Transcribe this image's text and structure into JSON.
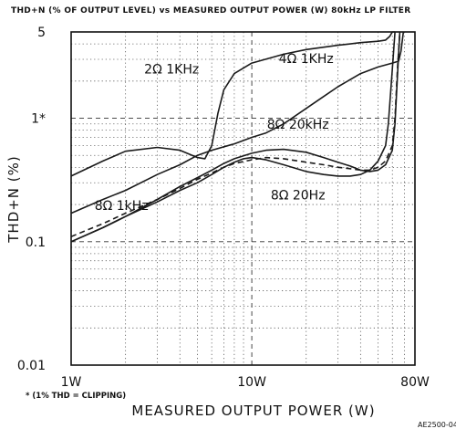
{
  "chart_data": {
    "type": "line",
    "title": "THD+N (% OF OUTPUT LEVEL) vs MEASURED OUTPUT POWER (W) 80kHz LP FILTER",
    "xlabel": "MEASURED OUTPUT POWER (W)",
    "ylabel": "THD+N (%)",
    "x_scale": "log",
    "y_scale": "log",
    "xlim": [
      1,
      80
    ],
    "ylim": [
      0.01,
      5
    ],
    "x_ticks": [
      {
        "value": 1,
        "label": "1W"
      },
      {
        "value": 10,
        "label": "10W"
      },
      {
        "value": 80,
        "label": "80W"
      }
    ],
    "y_ticks": [
      {
        "value": 5,
        "label": "5"
      },
      {
        "value": 1,
        "label": "1*"
      },
      {
        "value": 0.1,
        "label": "0.1"
      },
      {
        "value": 0.01,
        "label": "0.01"
      }
    ],
    "grid": true,
    "note": "* (1% THD = CLIPPING)",
    "figure_id": "AE2500-04",
    "series": [
      {
        "name": "2Ω 1KHz",
        "label_at": [
          3.6,
          2.3
        ],
        "dash": "solid",
        "x": [
          1,
          1.5,
          2,
          3,
          4,
          5,
          5.5,
          6,
          6.5,
          7,
          8,
          10,
          15,
          20,
          30,
          40,
          50,
          55,
          58,
          60,
          62
        ],
        "y": [
          0.34,
          0.45,
          0.54,
          0.58,
          0.55,
          0.48,
          0.47,
          0.6,
          1.1,
          1.7,
          2.3,
          2.8,
          3.3,
          3.6,
          3.9,
          4.1,
          4.2,
          4.3,
          4.6,
          5,
          5
        ]
      },
      {
        "name": "4Ω 1KHz",
        "label_at": [
          20,
          2.8
        ],
        "dash": "solid",
        "x": [
          1,
          1.5,
          2,
          3,
          4,
          5,
          6,
          8,
          10,
          12,
          15,
          20,
          25,
          30,
          40,
          50,
          60,
          65,
          67,
          69
        ],
        "y": [
          0.17,
          0.22,
          0.26,
          0.35,
          0.42,
          0.5,
          0.55,
          0.62,
          0.7,
          0.76,
          0.9,
          1.2,
          1.5,
          1.8,
          2.3,
          2.6,
          2.8,
          2.9,
          3.5,
          5
        ]
      },
      {
        "name": "8Ω 1kHz",
        "label_at": [
          1.9,
          0.18
        ],
        "dash": "solid",
        "x": [
          1,
          1.5,
          2,
          3,
          4,
          5,
          6,
          7,
          8,
          9,
          10,
          12,
          15,
          20,
          25,
          30,
          35,
          40,
          45,
          50,
          55,
          57,
          60,
          62
        ],
        "y": [
          0.1,
          0.13,
          0.16,
          0.21,
          0.26,
          0.3,
          0.35,
          0.4,
          0.44,
          0.47,
          0.48,
          0.46,
          0.42,
          0.37,
          0.35,
          0.34,
          0.34,
          0.35,
          0.38,
          0.45,
          0.6,
          0.9,
          2.5,
          5
        ]
      },
      {
        "name": "8Ω 20kHz",
        "label_at": [
          18,
          0.82
        ],
        "dash": "dashed",
        "x": [
          1,
          1.5,
          2,
          3,
          4,
          5,
          6,
          7,
          8,
          10,
          12,
          15,
          20,
          25,
          30,
          35,
          40,
          45,
          50,
          55,
          60,
          62,
          64,
          66
        ],
        "y": [
          0.11,
          0.14,
          0.17,
          0.22,
          0.27,
          0.32,
          0.36,
          0.4,
          0.43,
          0.46,
          0.48,
          0.47,
          0.44,
          0.42,
          0.4,
          0.39,
          0.38,
          0.38,
          0.4,
          0.45,
          0.6,
          1,
          2.5,
          5
        ]
      },
      {
        "name": "8Ω 20Hz",
        "label_at": [
          18,
          0.22
        ],
        "dash": "solid",
        "x": [
          1,
          1.5,
          2,
          3,
          4,
          5,
          6,
          7,
          8,
          10,
          12,
          15,
          20,
          25,
          30,
          35,
          40,
          45,
          50,
          55,
          60,
          62,
          64,
          66
        ],
        "y": [
          0.1,
          0.13,
          0.16,
          0.22,
          0.28,
          0.33,
          0.38,
          0.43,
          0.47,
          0.52,
          0.55,
          0.56,
          0.53,
          0.48,
          0.44,
          0.41,
          0.38,
          0.37,
          0.38,
          0.42,
          0.55,
          0.9,
          2.2,
          5
        ]
      }
    ]
  }
}
